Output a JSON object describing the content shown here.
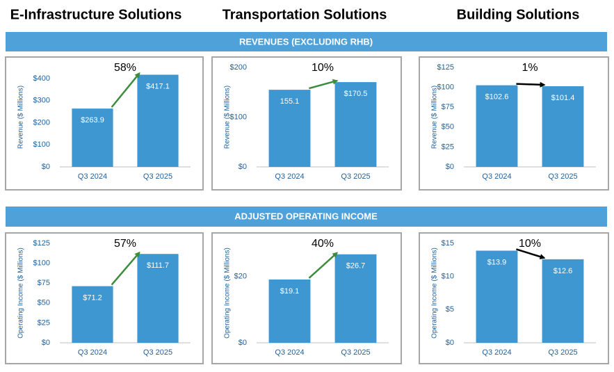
{
  "columns": [
    "E-Infrastructure Solutions",
    "Transportation Solutions",
    "Building Solutions"
  ],
  "sections": [
    "REVENUES (EXCLUDING RHB)",
    "ADJUSTED OPERATING INCOME"
  ],
  "chart_data": [
    {
      "type": "bar",
      "ylabel": "Revenue ($ Millions)",
      "categories": [
        "Q3 2024",
        "Q3 2025"
      ],
      "values": [
        263.9,
        417.1
      ],
      "value_labels": [
        "$263.9",
        "$417.1"
      ],
      "color": "#3f97d2",
      "ylim": [
        0,
        450
      ],
      "yticks": [
        {
          "value": 0,
          "label": "$0"
        },
        {
          "value": 100,
          "label": "$100"
        },
        {
          "value": 200,
          "label": "$200"
        },
        {
          "value": 300,
          "label": "$300"
        },
        {
          "value": 400,
          "label": "$400"
        }
      ],
      "annotation": "58%",
      "arrow_color": "#3d8b3d"
    },
    {
      "type": "bar",
      "ylabel": "Revenue ($ Millions)",
      "categories": [
        "Q3 2024",
        "Q3 2025"
      ],
      "values": [
        155.1,
        170.5
      ],
      "value_labels": [
        "155.1",
        "$170.5"
      ],
      "color": "#3f97d2",
      "ylim": [
        0,
        200
      ],
      "yticks": [
        {
          "value": 0,
          "label": "$0"
        },
        {
          "value": 100,
          "label": "$100"
        },
        {
          "value": 200,
          "label": "$200"
        }
      ],
      "annotation": "10%",
      "arrow_color": "#3d8b3d"
    },
    {
      "type": "bar",
      "ylabel": "Revenue ($ Millions)",
      "categories": [
        "Q3 2024",
        "Q3 2025"
      ],
      "values": [
        102.6,
        101.4
      ],
      "value_labels": [
        "$102.6",
        "$101.4"
      ],
      "color": "#3f97d2",
      "ylim": [
        0,
        125
      ],
      "yticks": [
        {
          "value": 0,
          "label": "$0"
        },
        {
          "value": 25,
          "label": "$25"
        },
        {
          "value": 50,
          "label": "$50"
        },
        {
          "value": 75,
          "label": "$75"
        },
        {
          "value": 100,
          "label": "$100"
        },
        {
          "value": 125,
          "label": "$125"
        }
      ],
      "annotation": "1%",
      "arrow_color": "#000000"
    },
    {
      "type": "bar",
      "ylabel": "Operating Income ($ Millions)",
      "categories": [
        "Q3 2024",
        "Q3 2025"
      ],
      "values": [
        71.2,
        111.7
      ],
      "value_labels": [
        "$71.2",
        "$111.7"
      ],
      "color": "#3f97d2",
      "ylim": [
        0,
        125
      ],
      "yticks": [
        {
          "value": 0,
          "label": "$0"
        },
        {
          "value": 25,
          "label": "$25"
        },
        {
          "value": 50,
          "label": "$50"
        },
        {
          "value": 75,
          "label": "$75"
        },
        {
          "value": 100,
          "label": "$100"
        },
        {
          "value": 125,
          "label": "$125"
        }
      ],
      "annotation": "57%",
      "arrow_color": "#3d8b3d"
    },
    {
      "type": "bar",
      "ylabel": "Operating Income ($ Millions)",
      "categories": [
        "Q3 2024",
        "Q3 2025"
      ],
      "values": [
        19.1,
        26.7
      ],
      "value_labels": [
        "$19.1",
        "$26.7"
      ],
      "color": "#3f97d2",
      "ylim": [
        0,
        30
      ],
      "yticks": [
        {
          "value": 0,
          "label": "$0"
        },
        {
          "value": 20,
          "label": "$20"
        }
      ],
      "annotation": "40%",
      "arrow_color": "#3d8b3d"
    },
    {
      "type": "bar",
      "ylabel": "Operating Income ($ Millions)",
      "categories": [
        "Q3 2024",
        "Q3 2025"
      ],
      "values": [
        13.9,
        12.6
      ],
      "value_labels": [
        "$13.9",
        "$12.6"
      ],
      "color": "#3f97d2",
      "ylim": [
        0,
        15
      ],
      "yticks": [
        {
          "value": 0,
          "label": "$0"
        },
        {
          "value": 5,
          "label": "$5"
        },
        {
          "value": 10,
          "label": "$10"
        },
        {
          "value": 15,
          "label": "$15"
        }
      ],
      "annotation": "10%",
      "arrow_color": "#000000"
    }
  ]
}
